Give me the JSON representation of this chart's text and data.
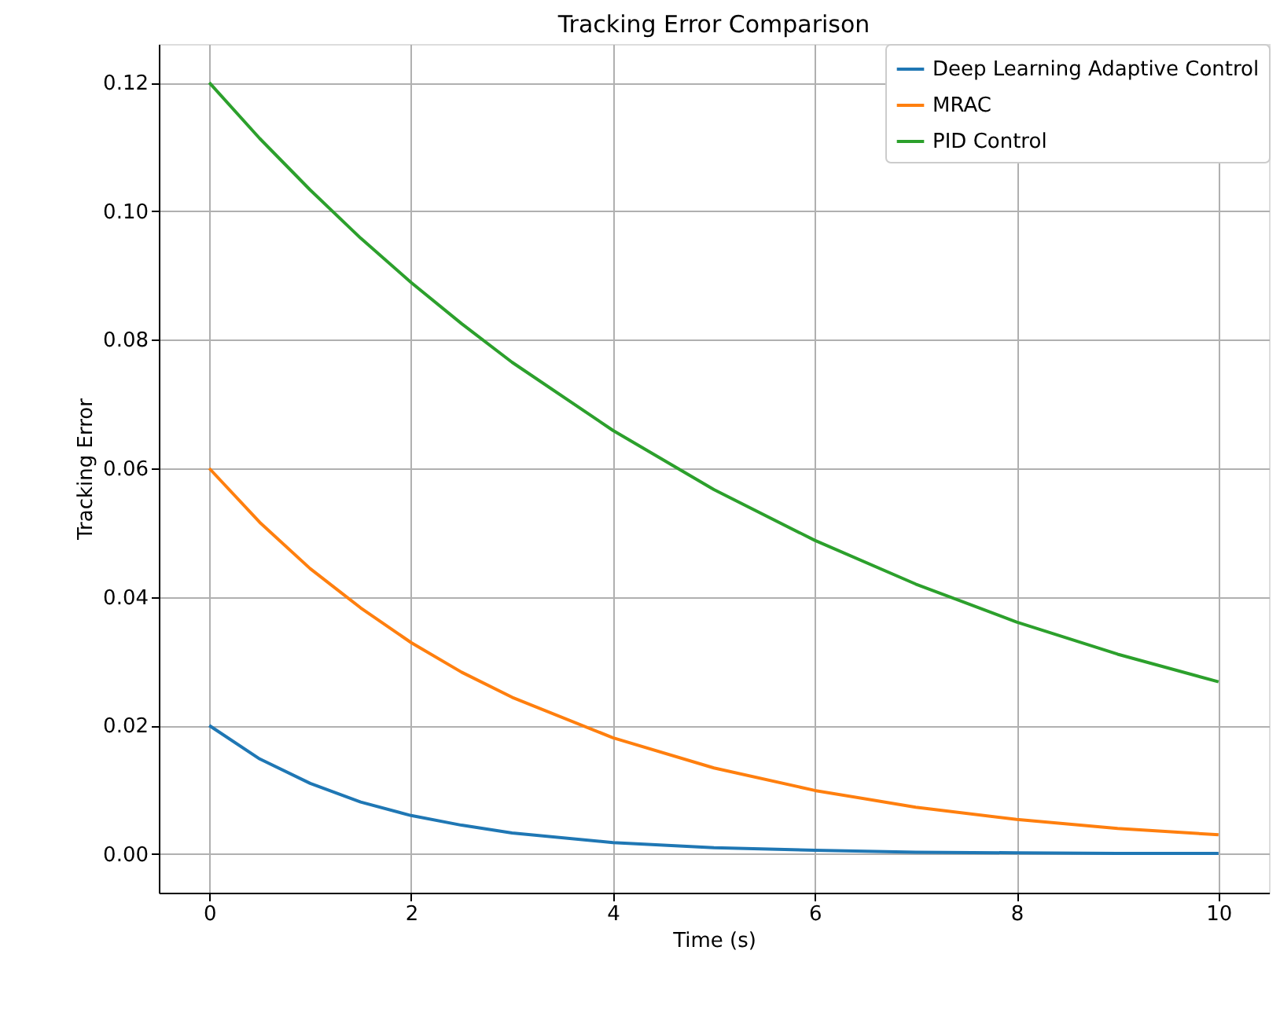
{
  "chart_data": {
    "type": "line",
    "title": "Tracking Error Comparison",
    "xlabel": "Time (s)",
    "ylabel": "Tracking Error",
    "x": [
      0,
      0.5,
      1,
      1.5,
      2,
      2.5,
      3,
      4,
      5,
      6,
      7,
      8,
      9,
      10
    ],
    "series": [
      {
        "name": "Deep Learning Adaptive Control",
        "color": "#1f77b4",
        "values": [
          0.02,
          0.0148,
          0.011,
          0.0081,
          0.006,
          0.0045,
          0.0033,
          0.0018,
          0.001,
          0.0006,
          0.0003,
          0.0002,
          0.0001,
          0.0001
        ]
      },
      {
        "name": "MRAC",
        "color": "#ff7f0e",
        "values": [
          0.06,
          0.0516,
          0.0444,
          0.0383,
          0.0329,
          0.0283,
          0.0244,
          0.0181,
          0.0134,
          0.0099,
          0.0073,
          0.0054,
          0.004,
          0.003
        ]
      },
      {
        "name": "PID Control",
        "color": "#2ca02c",
        "values": [
          0.12,
          0.1113,
          0.1033,
          0.0958,
          0.0889,
          0.0825,
          0.0765,
          0.0659,
          0.0567,
          0.0488,
          0.042,
          0.0361,
          0.0311,
          0.0268
        ]
      }
    ],
    "xlim": [
      -0.5,
      10.5
    ],
    "xticks": [
      0,
      2,
      4,
      6,
      8,
      10
    ],
    "ylim": [
      -0.006,
      0.126
    ],
    "yticks": [
      {
        "value": 0,
        "label": "0.00"
      },
      {
        "value": 0.02,
        "label": "0.02"
      },
      {
        "value": 0.04,
        "label": "0.04"
      },
      {
        "value": 0.06,
        "label": "0.06"
      },
      {
        "value": 0.08,
        "label": "0.08"
      },
      {
        "value": 0.1,
        "label": "0.10"
      },
      {
        "value": 0.12,
        "label": "0.12"
      }
    ],
    "grid": true,
    "legend": "top right",
    "marker": "none",
    "line_style": "solid"
  }
}
